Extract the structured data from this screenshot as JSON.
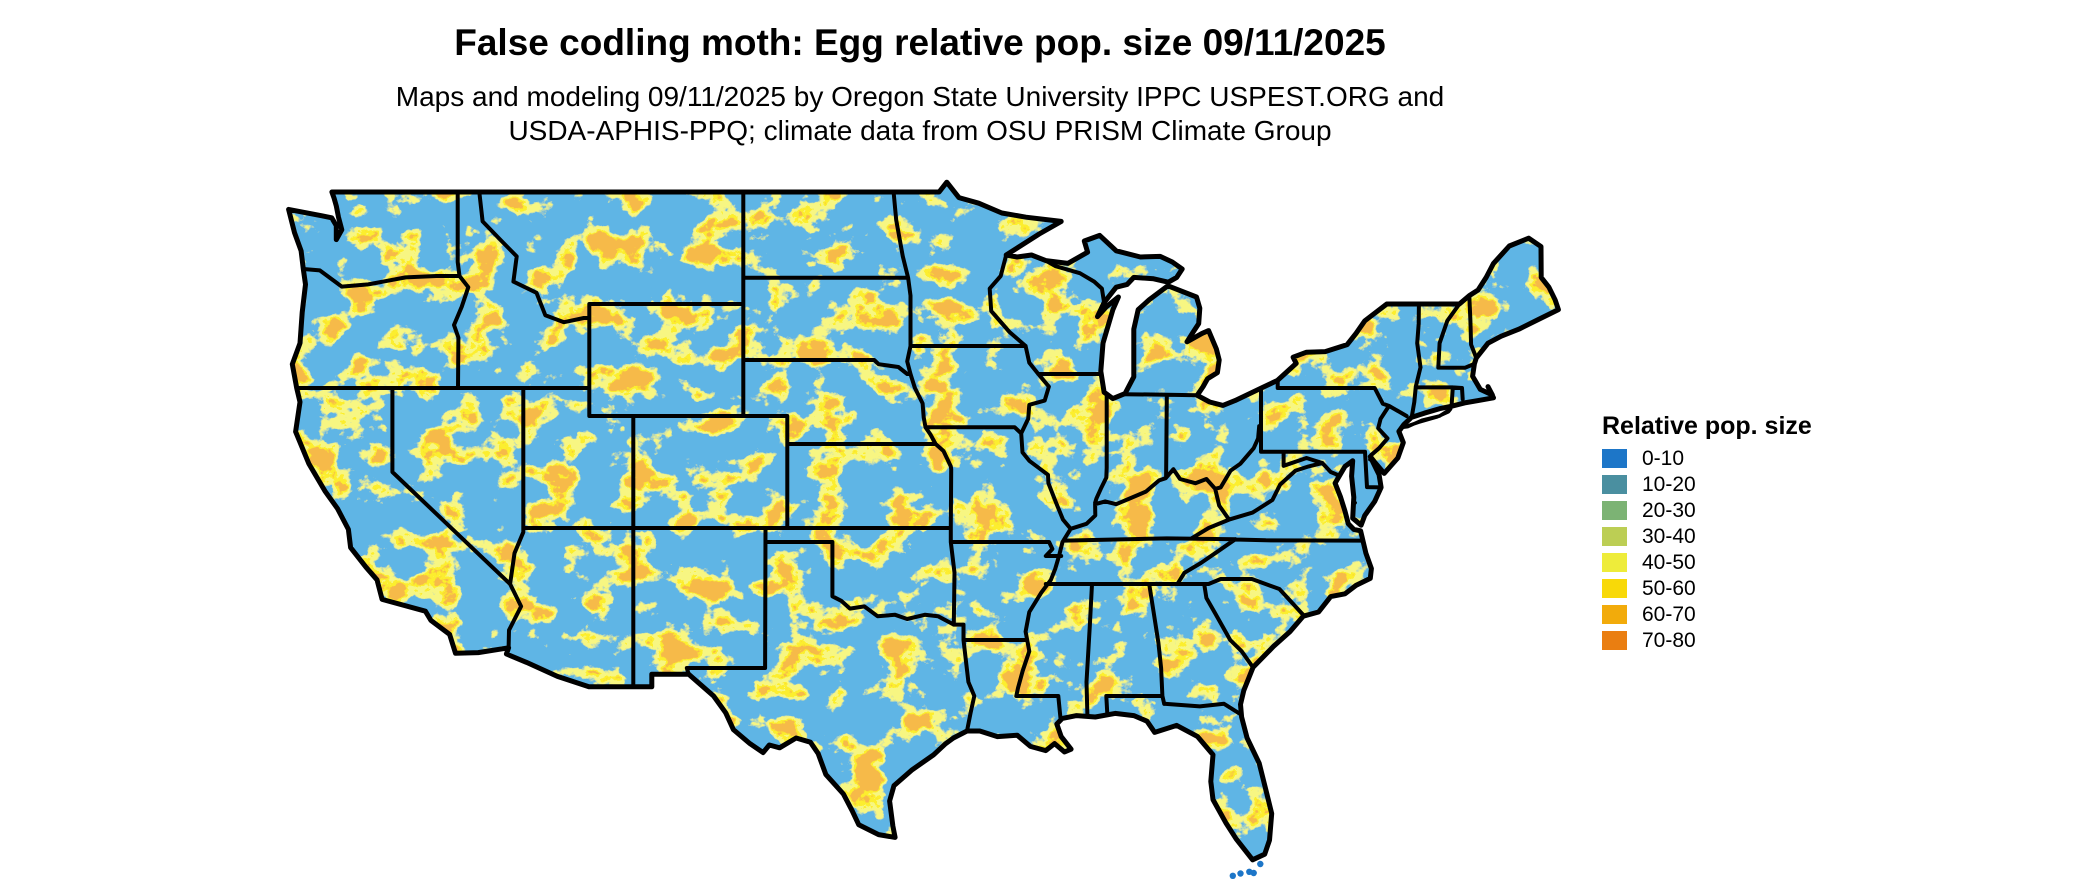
{
  "header": {
    "title": "False codling moth: Egg relative pop. size 09/11/2025",
    "subtitle_line1": "Maps and modeling 09/11/2025 by Oregon State University IPPC USPEST.ORG and",
    "subtitle_line2": "USDA-APHIS-PPQ; climate data from OSU PRISM Climate Group"
  },
  "legend": {
    "title": "Relative pop. size",
    "entries": [
      {
        "label": "0-10",
        "color": "#1d76c8"
      },
      {
        "label": "10-20",
        "color": "#4a8fa0"
      },
      {
        "label": "20-30",
        "color": "#7cb374"
      },
      {
        "label": "30-40",
        "color": "#bcce54"
      },
      {
        "label": "40-50",
        "color": "#eeec3a"
      },
      {
        "label": "50-60",
        "color": "#f8d908"
      },
      {
        "label": "60-70",
        "color": "#f2ab0b"
      },
      {
        "label": "70-80",
        "color": "#ea7e11"
      }
    ]
  },
  "map": {
    "type": "raster-choropleth",
    "region": "Conterminous United States",
    "background_color": "#ffffff",
    "state_border_color": "#000000",
    "base_value_color": "#1d76c8"
  }
}
